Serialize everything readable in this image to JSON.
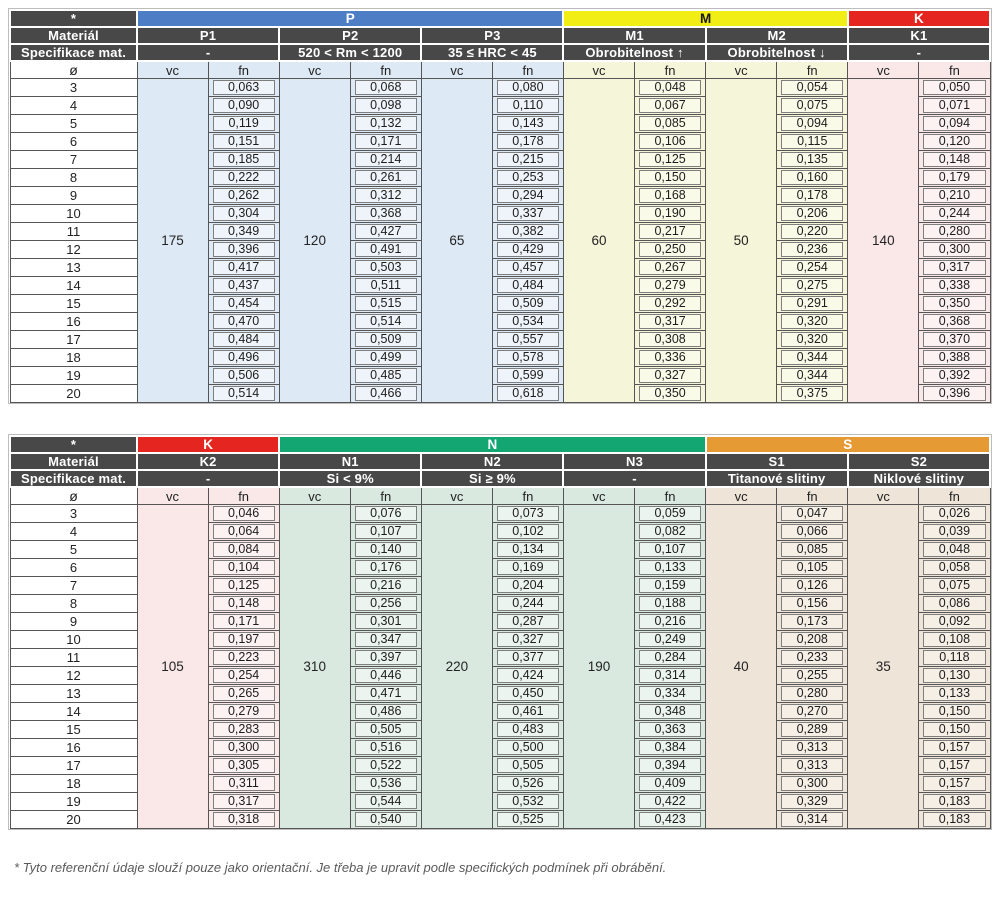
{
  "labels": {
    "star": "*",
    "material": "Materiál",
    "spec": "Specifikace mat.",
    "diameter": "ø",
    "vc": "vc",
    "fn": "fn"
  },
  "diameters": [
    "3",
    "4",
    "5",
    "6",
    "7",
    "8",
    "9",
    "10",
    "11",
    "12",
    "13",
    "14",
    "15",
    "16",
    "17",
    "18",
    "19",
    "20"
  ],
  "footnote": "* Tyto referenční údaje slouží pouze jako orientační. Je třeba je upravit podle specifických podmínek při obrábění.",
  "colors": {
    "header_dark": "#484848",
    "p_blue": "#4d7dc5",
    "m_yellow": "#f1ee15",
    "k_red": "#e52620",
    "n_green": "#13a673",
    "s_orange": "#e69a33"
  },
  "tables": [
    {
      "id": "top",
      "groups": [
        {
          "label": "P",
          "span": 3,
          "bg": "#4d7dc5",
          "fg": "#ffffff"
        },
        {
          "label": "M",
          "span": 2,
          "bg": "#f1ee15",
          "fg": "#1a1a1a"
        },
        {
          "label": "K",
          "span": 1,
          "bg": "#e52620",
          "fg": "#ffffff"
        }
      ],
      "columns": [
        {
          "id": "P1",
          "spec": "-",
          "vc": "175",
          "tint": "#dde9f4",
          "cell": "#eef4fa",
          "fn": [
            "0,063",
            "0,090",
            "0,119",
            "0,151",
            "0,185",
            "0,222",
            "0,262",
            "0,304",
            "0,349",
            "0,396",
            "0,417",
            "0,437",
            "0,454",
            "0,470",
            "0,484",
            "0,496",
            "0,506",
            "0,514"
          ]
        },
        {
          "id": "P2",
          "spec": "520 < Rm < 1200",
          "vc": "120",
          "tint": "#dde9f4",
          "cell": "#eef4fa",
          "fn": [
            "0,068",
            "0,098",
            "0,132",
            "0,171",
            "0,214",
            "0,261",
            "0,312",
            "0,368",
            "0,427",
            "0,491",
            "0,503",
            "0,511",
            "0,515",
            "0,514",
            "0,509",
            "0,499",
            "0,485",
            "0,466"
          ]
        },
        {
          "id": "P3",
          "spec": "35 ≤ HRC < 45",
          "vc": "65",
          "tint": "#dde9f4",
          "cell": "#eef4fa",
          "fn": [
            "0,080",
            "0,110",
            "0,143",
            "0,178",
            "0,215",
            "0,253",
            "0,294",
            "0,337",
            "0,382",
            "0,429",
            "0,457",
            "0,484",
            "0,509",
            "0,534",
            "0,557",
            "0,578",
            "0,599",
            "0,618"
          ]
        },
        {
          "id": "M1",
          "spec": "Obrobitelnost ↑",
          "vc": "60",
          "tint": "#f5f5da",
          "cell": "#fafae8",
          "fn": [
            "0,048",
            "0,067",
            "0,085",
            "0,106",
            "0,125",
            "0,150",
            "0,168",
            "0,190",
            "0,217",
            "0,250",
            "0,267",
            "0,279",
            "0,292",
            "0,317",
            "0,308",
            "0,336",
            "0,327",
            "0,350"
          ]
        },
        {
          "id": "M2",
          "spec": "Obrobitelnost ↓",
          "vc": "50",
          "tint": "#f5f5da",
          "cell": "#fafae8",
          "fn": [
            "0,054",
            "0,075",
            "0,094",
            "0,115",
            "0,135",
            "0,160",
            "0,178",
            "0,206",
            "0,220",
            "0,236",
            "0,254",
            "0,275",
            "0,291",
            "0,320",
            "0,320",
            "0,344",
            "0,344",
            "0,375"
          ]
        },
        {
          "id": "K1",
          "spec": "-",
          "vc": "140",
          "tint": "#fae8e8",
          "cell": "#fdf2f2",
          "fn": [
            "0,050",
            "0,071",
            "0,094",
            "0,120",
            "0,148",
            "0,179",
            "0,210",
            "0,244",
            "0,280",
            "0,300",
            "0,317",
            "0,338",
            "0,350",
            "0,368",
            "0,370",
            "0,388",
            "0,392",
            "0,396"
          ]
        }
      ]
    },
    {
      "id": "bottom",
      "groups": [
        {
          "label": "K",
          "span": 1,
          "bg": "#e52620",
          "fg": "#ffffff"
        },
        {
          "label": "N",
          "span": 3,
          "bg": "#13a673",
          "fg": "#ffffff"
        },
        {
          "label": "S",
          "span": 2,
          "bg": "#e69a33",
          "fg": "#ffffff"
        }
      ],
      "columns": [
        {
          "id": "K2",
          "spec": "-",
          "vc": "105",
          "tint": "#fae8e8",
          "cell": "#fdf2f2",
          "fn": [
            "0,046",
            "0,064",
            "0,084",
            "0,104",
            "0,125",
            "0,148",
            "0,171",
            "0,197",
            "0,223",
            "0,254",
            "0,265",
            "0,279",
            "0,283",
            "0,300",
            "0,305",
            "0,311",
            "0,317",
            "0,318"
          ]
        },
        {
          "id": "N1",
          "spec": "Si < 9%",
          "vc": "310",
          "tint": "#d9e9e0",
          "cell": "#ebf4ef",
          "fn": [
            "0,076",
            "0,107",
            "0,140",
            "0,176",
            "0,216",
            "0,256",
            "0,301",
            "0,347",
            "0,397",
            "0,446",
            "0,471",
            "0,486",
            "0,505",
            "0,516",
            "0,522",
            "0,536",
            "0,544",
            "0,540"
          ]
        },
        {
          "id": "N2",
          "spec": "Si ≥ 9%",
          "vc": "220",
          "tint": "#d9e9e0",
          "cell": "#ebf4ef",
          "fn": [
            "0,073",
            "0,102",
            "0,134",
            "0,169",
            "0,204",
            "0,244",
            "0,287",
            "0,327",
            "0,377",
            "0,424",
            "0,450",
            "0,461",
            "0,483",
            "0,500",
            "0,505",
            "0,526",
            "0,532",
            "0,525"
          ]
        },
        {
          "id": "N3",
          "spec": "-",
          "vc": "190",
          "tint": "#d9e9e0",
          "cell": "#ebf4ef",
          "fn": [
            "0,059",
            "0,082",
            "0,107",
            "0,133",
            "0,159",
            "0,188",
            "0,216",
            "0,249",
            "0,284",
            "0,314",
            "0,334",
            "0,348",
            "0,363",
            "0,384",
            "0,394",
            "0,409",
            "0,422",
            "0,423"
          ]
        },
        {
          "id": "S1",
          "spec": "Titanové slitiny",
          "vc": "40",
          "tint": "#eee4d8",
          "cell": "#f6efe6",
          "fn": [
            "0,047",
            "0,066",
            "0,085",
            "0,105",
            "0,126",
            "0,156",
            "0,173",
            "0,208",
            "0,233",
            "0,255",
            "0,280",
            "0,270",
            "0,289",
            "0,313",
            "0,313",
            "0,300",
            "0,329",
            "0,314"
          ]
        },
        {
          "id": "S2",
          "spec": "Niklové slitiny",
          "vc": "35",
          "tint": "#eee4d8",
          "cell": "#f6efe6",
          "fn": [
            "0,026",
            "0,039",
            "0,048",
            "0,058",
            "0,075",
            "0,086",
            "0,092",
            "0,108",
            "0,118",
            "0,130",
            "0,133",
            "0,150",
            "0,150",
            "0,157",
            "0,157",
            "0,157",
            "0,183",
            "0,183"
          ]
        }
      ]
    }
  ]
}
